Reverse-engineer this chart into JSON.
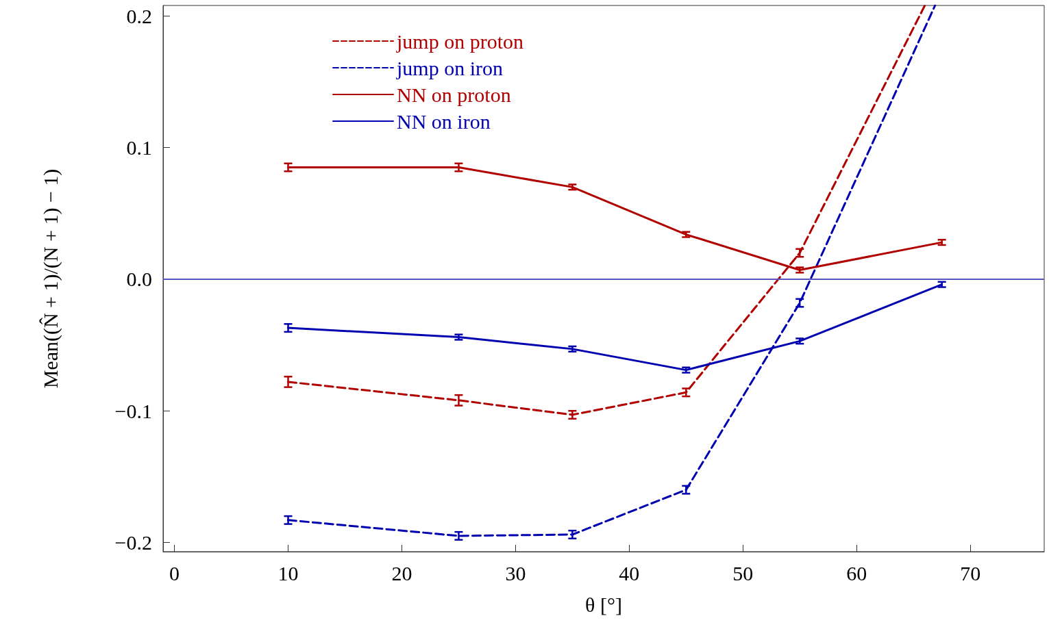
{
  "chart_data": {
    "type": "line",
    "xlabel": "θ [°]",
    "ylabel": "Mean((N̂ + 1)/(N + 1) − 1)",
    "x": [
      10,
      25,
      35,
      45,
      55,
      67.5
    ],
    "series": [
      {
        "name": "jump on proton",
        "color": "#b00000",
        "line_style": "dashed",
        "x": [
          10,
          25,
          35,
          45,
          55,
          66
        ],
        "values": [
          -0.078,
          -0.092,
          -0.103,
          -0.086,
          0.02,
          0.208
        ],
        "errors": [
          0.004,
          0.004,
          0.003,
          0.003,
          0.003,
          null
        ]
      },
      {
        "name": "jump on iron",
        "color": "#0000b0",
        "line_style": "dashed",
        "x": [
          10,
          25,
          35,
          45,
          55,
          66.9
        ],
        "values": [
          -0.183,
          -0.195,
          -0.194,
          -0.16,
          -0.018,
          0.208
        ],
        "errors": [
          0.003,
          0.003,
          0.003,
          0.003,
          0.003,
          null
        ]
      },
      {
        "name": "NN on proton",
        "color": "#b00000",
        "line_style": "solid",
        "values": [
          0.085,
          0.085,
          0.07,
          0.034,
          0.007,
          0.028
        ],
        "errors": [
          0.003,
          0.003,
          0.002,
          0.002,
          0.002,
          0.002
        ]
      },
      {
        "name": "NN on iron",
        "color": "#0000b0",
        "line_style": "solid",
        "values": [
          -0.037,
          -0.044,
          -0.053,
          -0.069,
          -0.047,
          -0.004
        ],
        "errors": [
          0.003,
          0.002,
          0.002,
          0.002,
          0.002,
          0.002
        ]
      }
    ],
    "xlim": [
      -1,
      76.5
    ],
    "xticks": [
      0,
      10,
      20,
      30,
      40,
      50,
      60,
      70
    ],
    "ylim": [
      -0.207,
      0.208
    ],
    "yticks": [
      {
        "value": -0.2,
        "label": "−0.2"
      },
      {
        "value": -0.1,
        "label": "−0.1"
      },
      {
        "value": 0,
        "label": "0.0"
      },
      0.1,
      0.2
    ],
    "ref_lines": [
      {
        "axis": "y",
        "value": 0,
        "label": null,
        "color": "#5555bb"
      }
    ],
    "marker": "none",
    "grid": false,
    "legend": "top left"
  }
}
